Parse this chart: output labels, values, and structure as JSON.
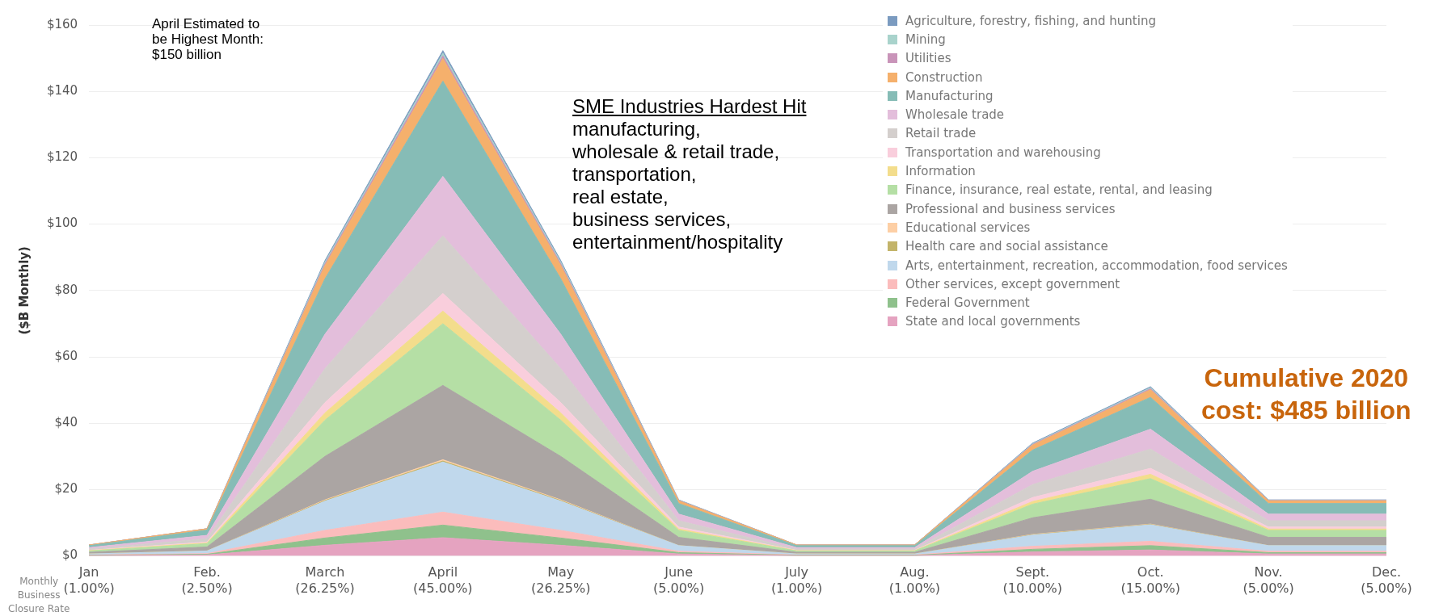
{
  "chart_data": {
    "type": "area",
    "stacked": true,
    "ylabel": "($B Monthly)",
    "categories": [
      "Jan\n(1.00%)",
      "Feb.\n(2.50%)",
      "March\n(26.25%)",
      "April\n(45.00%)",
      "May\n(26.25%)",
      "June\n(5.00%)",
      "July\n(1.00%)",
      "Aug.\n(1.00%)",
      "Sept.\n(10.00%)",
      "Oct.\n(15.00%)",
      "Nov.\n(5.00%)",
      "Dec.\n(5.00%)"
    ],
    "ylim": [
      0,
      160
    ],
    "yticks": [
      {
        "value": 0,
        "label": "$0"
      },
      {
        "value": 20,
        "label": "$20"
      },
      {
        "value": 40,
        "label": "$40"
      },
      {
        "value": 60,
        "label": "$60"
      },
      {
        "value": 80,
        "label": "$80"
      },
      {
        "value": 100,
        "label": "$100"
      },
      {
        "value": 120,
        "label": "$120"
      },
      {
        "value": 140,
        "label": "$140"
      },
      {
        "value": 160,
        "label": "$160"
      }
    ],
    "grid": "y",
    "legend": "top right",
    "annotations": [
      "April Estimated to\nbe Highest Month:\n$150 billion",
      "SME Industries Hardest Hit",
      "manufacturing,\nwholesale & retail trade,\ntransportation,\nreal estate,\nbusiness services,\nentertainment/hospitality",
      "Cumulative 2020\ncost: $485 billion",
      "Monthly\nBusiness\nClosure Rate"
    ],
    "series": [
      {
        "name": "State and local governments",
        "color": "#e5a3c0",
        "values": [
          0.1,
          0.3,
          3.2,
          5.5,
          3.2,
          0.6,
          0.1,
          0.1,
          1.2,
          1.8,
          0.6,
          0.6
        ]
      },
      {
        "name": "Federal Government",
        "color": "#8fc18c",
        "values": [
          0.1,
          0.2,
          2.2,
          3.8,
          2.2,
          0.4,
          0.1,
          0.1,
          0.8,
          1.3,
          0.4,
          0.4
        ]
      },
      {
        "name": "Other services, except government",
        "color": "#fbbcbc",
        "values": [
          0.1,
          0.2,
          2.3,
          3.9,
          2.3,
          0.4,
          0.1,
          0.1,
          0.9,
          1.3,
          0.4,
          0.4
        ]
      },
      {
        "name": "Arts, entertainment, recreation, accommodation, food services",
        "color": "#c0d8ec",
        "values": [
          0.3,
          0.8,
          8.8,
          15.1,
          8.8,
          1.7,
          0.3,
          0.3,
          3.4,
          5.0,
          1.7,
          1.7
        ]
      },
      {
        "name": "Health care and social assistance",
        "color": "#c3b46a",
        "values": [
          0.0,
          0.0,
          0.2,
          0.3,
          0.2,
          0.0,
          0.0,
          0.0,
          0.1,
          0.1,
          0.0,
          0.0
        ]
      },
      {
        "name": "Educational services",
        "color": "#fdcfa5",
        "values": [
          0.0,
          0.0,
          0.2,
          0.4,
          0.2,
          0.0,
          0.0,
          0.0,
          0.1,
          0.1,
          0.0,
          0.0
        ]
      },
      {
        "name": "Professional and business services",
        "color": "#aba5a3",
        "values": [
          0.5,
          1.2,
          13.1,
          22.4,
          13.1,
          2.5,
          0.5,
          0.5,
          5.0,
          7.5,
          2.5,
          2.5
        ]
      },
      {
        "name": "Finance, insurance, real estate, rental, and leasing",
        "color": "#b5dfa5",
        "values": [
          0.4,
          1.0,
          10.9,
          18.6,
          10.9,
          2.1,
          0.4,
          0.4,
          4.1,
          6.2,
          2.1,
          2.1
        ]
      },
      {
        "name": "Information",
        "color": "#f3dd8c",
        "values": [
          0.1,
          0.2,
          2.2,
          3.8,
          2.2,
          0.4,
          0.1,
          0.1,
          0.8,
          1.3,
          0.4,
          0.4
        ]
      },
      {
        "name": "Transportation and warehousing",
        "color": "#f9cedc",
        "values": [
          0.1,
          0.3,
          3.1,
          5.3,
          3.1,
          0.6,
          0.1,
          0.1,
          1.2,
          1.8,
          0.6,
          0.6
        ]
      },
      {
        "name": "Retail trade",
        "color": "#d4cfcd",
        "values": [
          0.4,
          1.0,
          10.2,
          17.4,
          10.2,
          1.9,
          0.4,
          0.4,
          3.9,
          5.8,
          1.9,
          1.9
        ]
      },
      {
        "name": "Wholesale trade",
        "color": "#e3bedb",
        "values": [
          0.4,
          1.0,
          10.4,
          17.9,
          10.4,
          2.0,
          0.4,
          0.4,
          4.0,
          6.0,
          2.0,
          2.0
        ]
      },
      {
        "name": "Manufacturing",
        "color": "#86bcb6",
        "values": [
          0.6,
          1.6,
          16.7,
          28.7,
          16.7,
          3.2,
          0.6,
          0.6,
          6.4,
          9.6,
          3.2,
          3.2
        ]
      },
      {
        "name": "Construction",
        "color": "#f5b06c",
        "values": [
          0.2,
          0.4,
          4.0,
          6.8,
          4.0,
          0.8,
          0.2,
          0.2,
          1.5,
          2.3,
          0.8,
          0.8
        ]
      },
      {
        "name": "Utilities",
        "color": "#c994b9",
        "values": [
          0.0,
          0.0,
          0.5,
          0.8,
          0.5,
          0.1,
          0.0,
          0.0,
          0.2,
          0.3,
          0.1,
          0.1
        ]
      },
      {
        "name": "Mining",
        "color": "#a9d3cc",
        "values": [
          0.0,
          0.0,
          0.5,
          0.8,
          0.5,
          0.1,
          0.0,
          0.0,
          0.2,
          0.3,
          0.1,
          0.1
        ]
      },
      {
        "name": "Agriculture, forestry, fishing, and hunting",
        "color": "#7b9bc0",
        "values": [
          0.0,
          0.0,
          0.5,
          0.8,
          0.5,
          0.1,
          0.0,
          0.0,
          0.2,
          0.3,
          0.1,
          0.1
        ]
      }
    ]
  }
}
